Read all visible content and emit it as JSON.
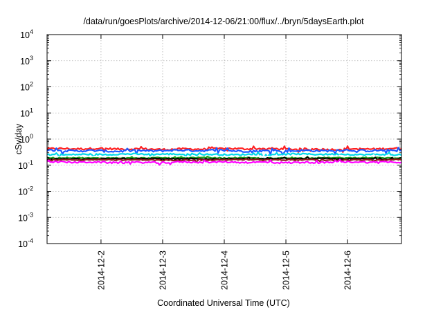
{
  "chart_data": {
    "type": "line",
    "title": "/data/run/goesPlots/archive/2014-12-06/21:00/flux/../bryn/5daysEarth.plot",
    "xlabel": "Coordinated Universal Time (UTC)",
    "ylabel": "cSv/day",
    "yscale": "log",
    "ylim": [
      0.0001,
      10000
    ],
    "xlim": [
      "2014-12-01 03:00",
      "2014-12-06 21:00"
    ],
    "grid": true,
    "y_ticks": [
      {
        "value": 0.0001,
        "base": "10",
        "exp": "-4"
      },
      {
        "value": 0.001,
        "base": "10",
        "exp": "-3"
      },
      {
        "value": 0.01,
        "base": "10",
        "exp": "-2"
      },
      {
        "value": 0.1,
        "base": "10",
        "exp": "-1"
      },
      {
        "value": 1,
        "base": "10",
        "exp": "0"
      },
      {
        "value": 10,
        "base": "10",
        "exp": "1"
      },
      {
        "value": 100,
        "base": "10",
        "exp": "2"
      },
      {
        "value": 1000,
        "base": "10",
        "exp": "3"
      },
      {
        "value": 10000,
        "base": "10",
        "exp": "4"
      }
    ],
    "x_ticks": [
      {
        "value": "2014-12-02",
        "label": "2014-12-2"
      },
      {
        "value": "2014-12-03",
        "label": "2014-12-3"
      },
      {
        "value": "2014-12-04",
        "label": "2014-12-4"
      },
      {
        "value": "2014-12-05",
        "label": "2014-12-5"
      },
      {
        "value": "2014-12-06",
        "label": "2014-12-6"
      }
    ],
    "series": [
      {
        "color": "#ff2020",
        "level": 0.42,
        "noise": 0.09
      },
      {
        "color": "#1e5aff",
        "level": 0.36,
        "noise": 0.1
      },
      {
        "color": "#00d8e8",
        "level": 0.26,
        "noise": 0.07
      },
      {
        "color": "#ffffff",
        "level": 0.21,
        "noise": 0.05
      },
      {
        "color": "#1aa01a",
        "level": 0.19,
        "noise": 0.05
      },
      {
        "color": "#000000",
        "level": 0.175,
        "noise": 0.05
      },
      {
        "color": "#8b1a1a",
        "level": 0.16,
        "noise": 0.05
      },
      {
        "color": "#ff00ff",
        "level": 0.13,
        "noise": 0.08
      }
    ]
  }
}
